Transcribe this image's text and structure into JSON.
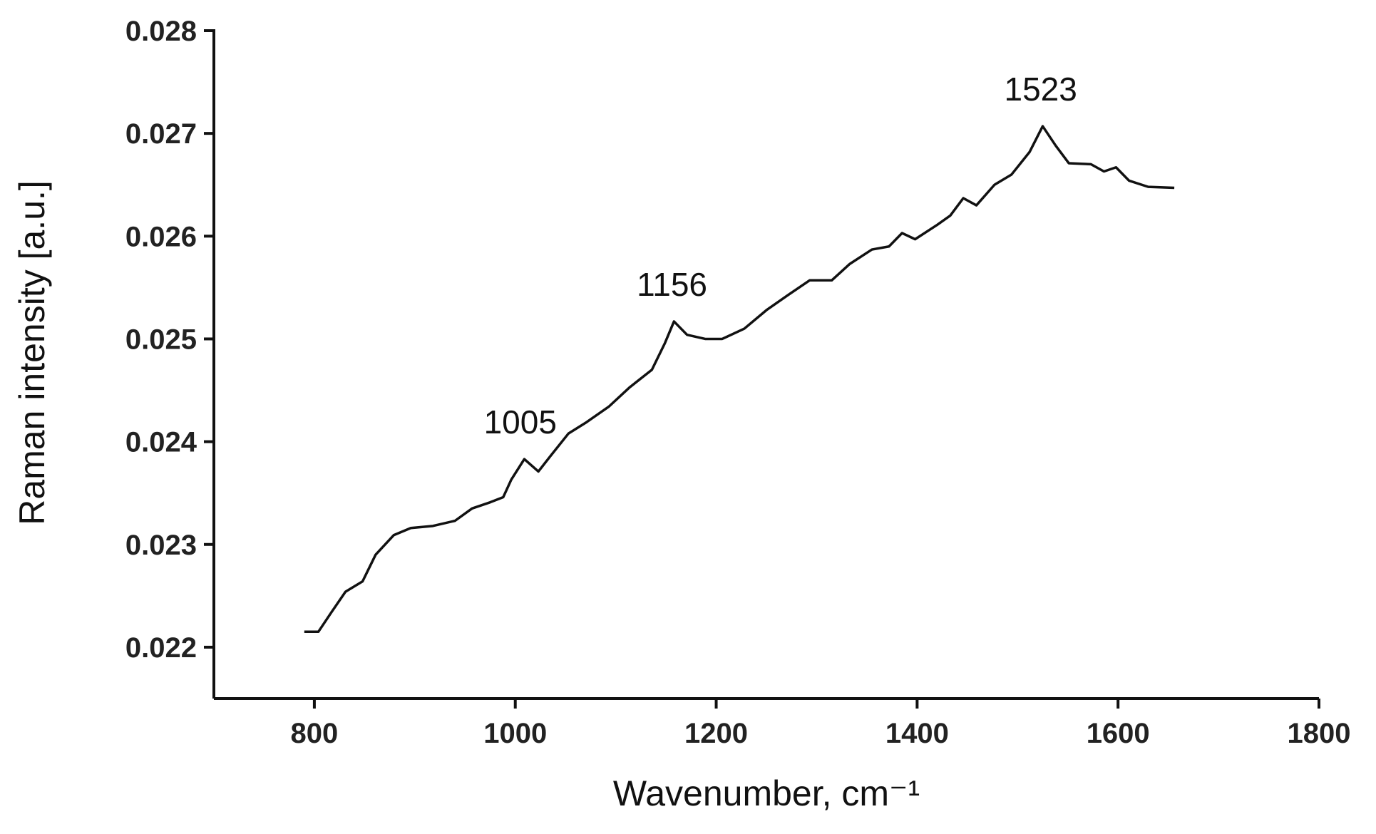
{
  "chart_data": {
    "type": "line",
    "xlabel": "Wavenumber, cm⁻¹",
    "ylabel": "Raman intensity [a.u.]",
    "annotations": [
      "1005",
      "1156",
      "1523"
    ],
    "series": [
      {
        "color": "#111111",
        "x": [
          790,
          804,
          817,
          831,
          848,
          861,
          879,
          896,
          918,
          940,
          957,
          975,
          988,
          996,
          1009,
          1023,
          1035,
          1053,
          1071,
          1093,
          1114,
          1136,
          1149,
          1158,
          1171,
          1189,
          1206,
          1228,
          1250,
          1272,
          1293,
          1315,
          1333,
          1355,
          1372,
          1385,
          1398,
          1420,
          1433,
          1446,
          1459,
          1477,
          1494,
          1512,
          1525,
          1538,
          1551,
          1573,
          1586,
          1598,
          1611,
          1630,
          1656
        ],
        "values": [
          0.02215,
          0.02215,
          0.02234,
          0.02254,
          0.02264,
          0.0229,
          0.02309,
          0.02316,
          0.02318,
          0.02323,
          0.02335,
          0.02341,
          0.02346,
          0.02363,
          0.02383,
          0.02371,
          0.02386,
          0.02408,
          0.02419,
          0.02434,
          0.02453,
          0.0247,
          0.02496,
          0.02517,
          0.02504,
          0.025,
          0.025,
          0.0251,
          0.02528,
          0.02543,
          0.02557,
          0.02557,
          0.02573,
          0.02587,
          0.0259,
          0.02603,
          0.02597,
          0.02611,
          0.0262,
          0.02637,
          0.0263,
          0.0265,
          0.0266,
          0.02682,
          0.02707,
          0.02688,
          0.02671,
          0.0267,
          0.02663,
          0.02667,
          0.02654,
          0.02648,
          0.02647
        ]
      }
    ],
    "xlim": [
      700,
      1800
    ],
    "xticks": [
      800,
      1000,
      1200,
      1400,
      1600,
      1800
    ],
    "ylim": [
      0.0215,
      0.028
    ],
    "yticks": [
      0.022,
      0.023,
      0.024,
      0.025,
      0.026,
      0.027,
      0.028
    ]
  }
}
